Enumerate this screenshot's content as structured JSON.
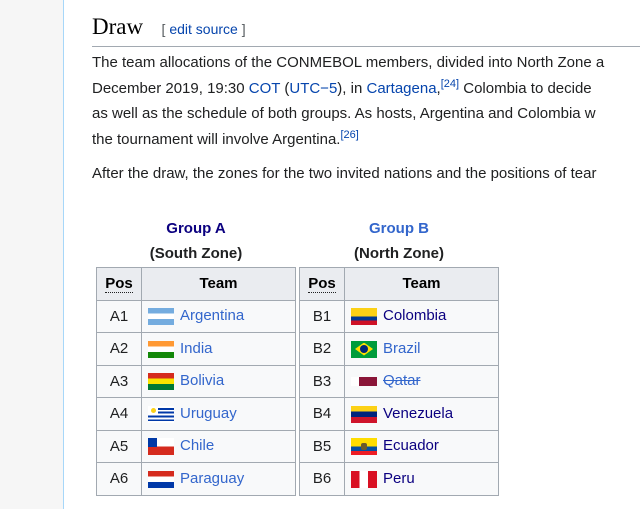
{
  "heading": {
    "title": "Draw",
    "edit_open": "[",
    "edit_label": "edit source",
    "edit_close": "]"
  },
  "paragraphs": {
    "p1_l1": "The team allocations of the CONMEBOL members, divided into North Zone a",
    "p1_l2a": "December 2019, 19:30 ",
    "p1_cot": "COT",
    "p1_l2b": " (",
    "p1_utc": "UTC−5",
    "p1_l2c": "), in ",
    "p1_cart": "Cartagena",
    "p1_l2d": ",",
    "p1_ref24": "[24]",
    "p1_l2e": " Colombia to decide",
    "p1_l3": "as well as the schedule of both groups. As hosts, Argentina and Colombia w",
    "p1_l4": "the tournament will involve Argentina.",
    "p1_ref26": "[26]",
    "p2": "After the draw, the zones for the two invited nations and the positions of tear"
  },
  "groups": [
    {
      "title": "Group A",
      "zone": "(South Zone)",
      "pos_header": "Pos",
      "team_header": "Team",
      "rows": [
        {
          "pos": "A1",
          "team": "Argentina",
          "flag": "argentina"
        },
        {
          "pos": "A2",
          "team": "India",
          "flag": "india"
        },
        {
          "pos": "A3",
          "team": "Bolivia",
          "flag": "bolivia"
        },
        {
          "pos": "A4",
          "team": "Uruguay",
          "flag": "uruguay"
        },
        {
          "pos": "A5",
          "team": "Chile",
          "flag": "chile"
        },
        {
          "pos": "A6",
          "team": "Paraguay",
          "flag": "paraguay"
        }
      ]
    },
    {
      "title": "Group B",
      "zone": "(North Zone)",
      "pos_header": "Pos",
      "team_header": "Team",
      "rows": [
        {
          "pos": "B1",
          "team": "Colombia",
          "flag": "colombia"
        },
        {
          "pos": "B2",
          "team": "Brazil",
          "flag": "brazil"
        },
        {
          "pos": "B3",
          "team": "Qatar",
          "flag": "qatar",
          "struck": true
        },
        {
          "pos": "B4",
          "team": "Venezuela",
          "flag": "venezuela"
        },
        {
          "pos": "B5",
          "team": "Ecuador",
          "flag": "ecuador"
        },
        {
          "pos": "B6",
          "team": "Peru",
          "flag": "peru"
        }
      ]
    }
  ],
  "colors": {
    "link": "#3366cc",
    "visited": "#0b0080"
  }
}
